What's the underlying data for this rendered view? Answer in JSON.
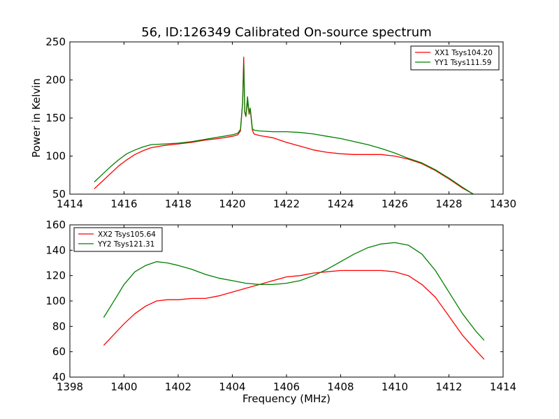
{
  "chart_data": [
    {
      "type": "line",
      "title": "56, ID:126349 Calibrated On-source spectrum",
      "xlabel": "",
      "ylabel": "Power in Kelvin",
      "xlim": [
        1414,
        1430
      ],
      "ylim": [
        50,
        250
      ],
      "xticks": [
        1414,
        1416,
        1418,
        1420,
        1422,
        1424,
        1426,
        1428,
        1430
      ],
      "yticks": [
        50,
        100,
        150,
        200,
        250
      ],
      "grid": false,
      "legend_position": "top-right",
      "series": [
        {
          "name": "XX1 Tsys104.20",
          "color": "#ff0000",
          "x": [
            1414.9,
            1415.2,
            1415.5,
            1415.8,
            1416.1,
            1416.4,
            1416.7,
            1417.0,
            1417.5,
            1418.0,
            1418.5,
            1419.0,
            1419.5,
            1420.0,
            1420.2,
            1420.3,
            1420.38,
            1420.42,
            1420.46,
            1420.5,
            1420.56,
            1420.62,
            1420.66,
            1420.7,
            1420.74,
            1420.8,
            1421.0,
            1421.5,
            1422.0,
            1422.5,
            1423.0,
            1423.5,
            1424.0,
            1424.5,
            1425.0,
            1425.5,
            1426.0,
            1426.5,
            1427.0,
            1427.5,
            1428.0,
            1428.5,
            1428.9
          ],
          "y": [
            57,
            67,
            77,
            87,
            95,
            102,
            107,
            111,
            114,
            116,
            118,
            121,
            123,
            126,
            128,
            133,
            170,
            230,
            158,
            152,
            172,
            155,
            162,
            148,
            134,
            129,
            127,
            124,
            118,
            113,
            108,
            105,
            103,
            102,
            102,
            102,
            100,
            96,
            90,
            81,
            70,
            58,
            50
          ]
        },
        {
          "name": "YY1 Tsys111.59",
          "color": "#008000",
          "x": [
            1414.9,
            1415.2,
            1415.5,
            1415.8,
            1416.1,
            1416.4,
            1416.7,
            1417.0,
            1417.5,
            1418.0,
            1418.5,
            1419.0,
            1419.5,
            1420.0,
            1420.2,
            1420.3,
            1420.38,
            1420.42,
            1420.46,
            1420.5,
            1420.56,
            1420.62,
            1420.66,
            1420.7,
            1420.74,
            1420.8,
            1421.0,
            1421.5,
            1422.0,
            1422.5,
            1423.0,
            1423.5,
            1424.0,
            1424.5,
            1425.0,
            1425.5,
            1426.0,
            1426.5,
            1427.0,
            1427.5,
            1428.0,
            1428.5,
            1428.9
          ],
          "y": [
            66,
            76,
            86,
            95,
            103,
            108,
            112,
            115,
            116,
            117,
            119,
            122,
            125,
            128,
            130,
            135,
            170,
            222,
            158,
            152,
            178,
            157,
            163,
            150,
            136,
            134,
            133,
            132,
            132,
            131,
            129,
            126,
            123,
            119,
            115,
            110,
            104,
            97,
            91,
            82,
            71,
            59,
            50
          ]
        }
      ]
    },
    {
      "type": "line",
      "title": "",
      "xlabel": "Frequency (MHz)",
      "ylabel": "",
      "xlim": [
        1398,
        1414
      ],
      "ylim": [
        40,
        160
      ],
      "xticks": [
        1398,
        1400,
        1402,
        1404,
        1406,
        1408,
        1410,
        1412,
        1414
      ],
      "yticks": [
        40,
        60,
        80,
        100,
        120,
        140,
        160
      ],
      "grid": false,
      "legend_position": "top-left",
      "series": [
        {
          "name": "XX2 Tsys105.64",
          "color": "#ff0000",
          "x": [
            1399.25,
            1399.6,
            1400.0,
            1400.4,
            1400.8,
            1401.2,
            1401.6,
            1402.0,
            1402.5,
            1403.0,
            1403.5,
            1404.0,
            1404.5,
            1405.0,
            1405.5,
            1406.0,
            1406.5,
            1407.0,
            1407.5,
            1408.0,
            1408.5,
            1409.0,
            1409.5,
            1410.0,
            1410.5,
            1411.0,
            1411.5,
            1412.0,
            1412.5,
            1413.0,
            1413.3
          ],
          "y": [
            65,
            73,
            82,
            90,
            96,
            100,
            101,
            101,
            102,
            102,
            104,
            107,
            110,
            113,
            116,
            119,
            120,
            122,
            123,
            124,
            124,
            124,
            124,
            123,
            120,
            113,
            103,
            88,
            73,
            61,
            54
          ]
        },
        {
          "name": "YY2 Tsys121.31",
          "color": "#008000",
          "x": [
            1399.25,
            1399.6,
            1400.0,
            1400.4,
            1400.8,
            1401.2,
            1401.6,
            1402.0,
            1402.5,
            1403.0,
            1403.5,
            1404.0,
            1404.5,
            1405.0,
            1405.5,
            1406.0,
            1406.5,
            1407.0,
            1407.5,
            1408.0,
            1408.5,
            1409.0,
            1409.5,
            1410.0,
            1410.5,
            1411.0,
            1411.5,
            1412.0,
            1412.5,
            1413.0,
            1413.3
          ],
          "y": [
            87,
            99,
            113,
            123,
            128,
            131,
            130,
            128,
            125,
            121,
            118,
            116,
            114,
            113,
            113,
            114,
            116,
            120,
            125,
            131,
            137,
            142,
            145,
            146,
            144,
            137,
            124,
            107,
            90,
            76,
            69
          ]
        }
      ]
    }
  ]
}
